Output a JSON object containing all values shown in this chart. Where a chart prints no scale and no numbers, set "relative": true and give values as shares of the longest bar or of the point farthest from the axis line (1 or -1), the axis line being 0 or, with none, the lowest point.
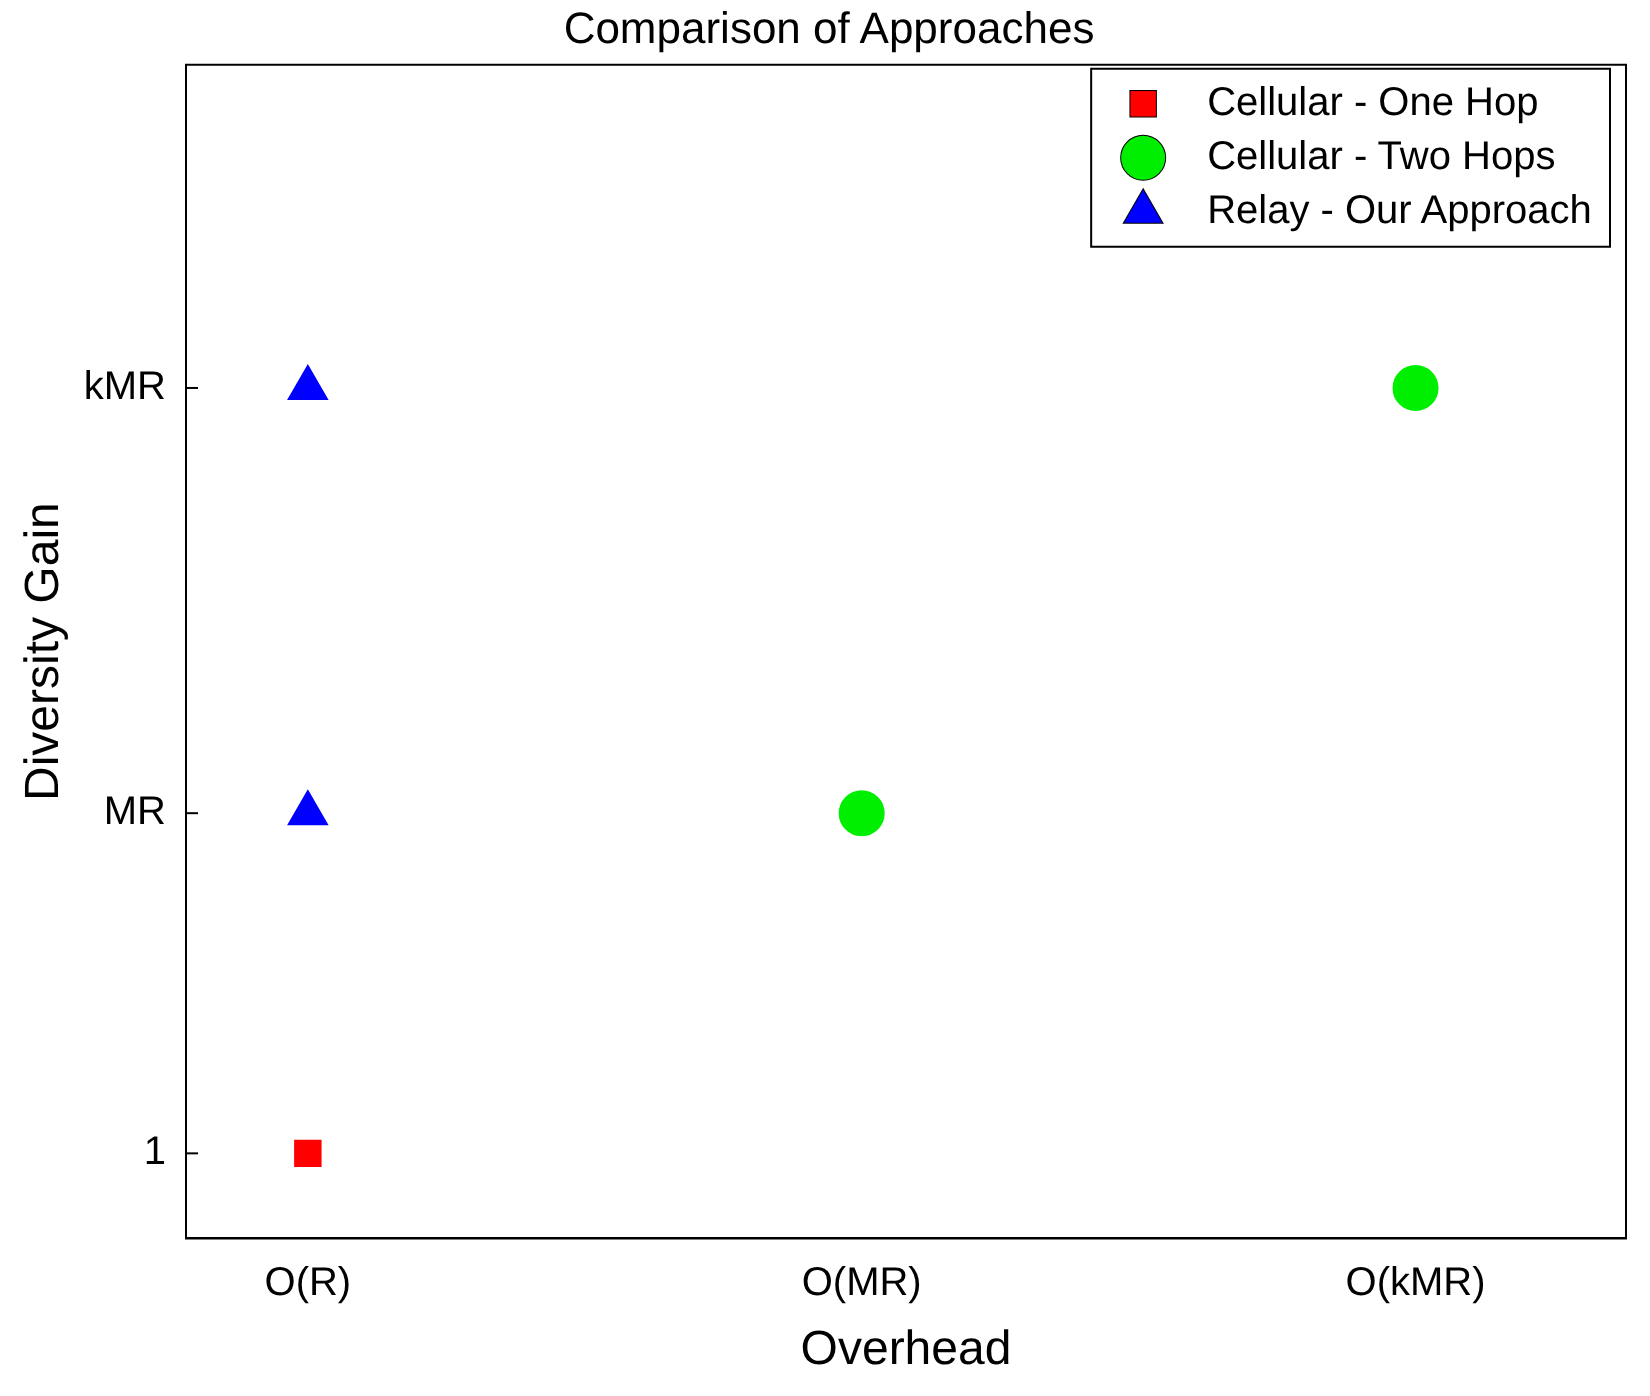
{
  "chart_data": {
    "type": "scatter",
    "title": "Comparison of Approaches",
    "xlabel": "Overhead",
    "ylabel": "Diversity Gain",
    "categories": [
      "O(R)",
      "O(MR)",
      "O(kMR)"
    ],
    "relative": true,
    "annotations": [
      "1",
      "MR",
      "kMR"
    ],
    "grid": false,
    "legend": "top right",
    "series": [
      {
        "name": "Cellular - One Hop",
        "color": "#ff0000",
        "marker": "square",
        "x": [
          "O(R)"
        ],
        "values": [
          0.1
        ]
      },
      {
        "name": "Cellular - Two Hops",
        "color": "#00ee00",
        "marker": "circle",
        "x": [
          "O(MR)",
          "O(kMR)"
        ],
        "values": [
          0.5,
          1
        ]
      },
      {
        "name": "Relay - Our Approach",
        "color": "#0000ff",
        "marker": "triangle",
        "x": [
          "O(R)",
          "O(R)"
        ],
        "values": [
          0.5,
          1
        ]
      }
    ]
  }
}
